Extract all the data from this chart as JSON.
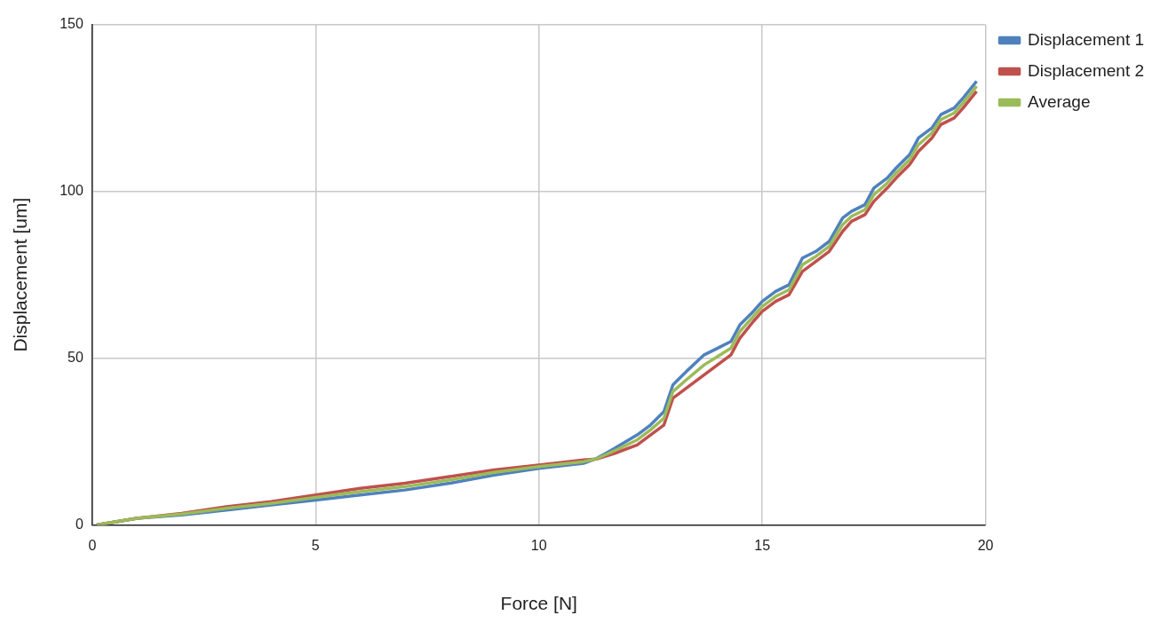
{
  "chart_data": {
    "type": "line",
    "xlabel": "Force [N]",
    "ylabel": "Displacement [um]",
    "x": [
      0.1,
      1,
      2,
      3,
      4,
      5,
      6,
      7,
      8,
      9,
      10,
      11,
      11.3,
      11.7,
      12.2,
      12.5,
      12.8,
      13.0,
      13.3,
      13.7,
      14.0,
      14.3,
      14.5,
      14.8,
      15.0,
      15.3,
      15.6,
      15.9,
      16.2,
      16.5,
      16.8,
      17.0,
      17.3,
      17.5,
      17.8,
      18.0,
      18.3,
      18.5,
      18.8,
      19.0,
      19.3,
      19.5,
      19.8
    ],
    "series": [
      {
        "name": "Displacement 1",
        "color": "#4f81bd",
        "values": [
          0,
          2,
          3,
          4.5,
          6,
          7.5,
          9,
          10.5,
          12.5,
          15,
          17,
          18.5,
          20,
          23,
          27,
          30,
          34,
          42,
          46,
          51,
          53,
          55,
          60,
          64,
          67,
          70,
          72,
          80,
          82,
          85,
          92,
          94,
          96,
          101,
          104,
          107,
          111,
          116,
          119,
          123,
          125,
          128,
          133
        ]
      },
      {
        "name": "Displacement 2",
        "color": "#c0504d",
        "values": [
          0,
          2,
          3.5,
          5.5,
          7,
          9,
          11,
          12.5,
          14.5,
          16.5,
          18,
          19.5,
          19.8,
          21.5,
          24,
          27,
          30,
          38,
          41,
          45,
          48,
          51,
          56,
          61,
          64,
          67,
          69,
          76,
          79,
          82,
          88,
          91,
          93,
          97,
          101,
          104,
          108,
          112,
          116,
          120,
          122,
          125,
          130
        ]
      },
      {
        "name": "Average",
        "color": "#9bbb59",
        "values": [
          0,
          2,
          3.3,
          5,
          6.5,
          8.3,
          10,
          11.5,
          13.5,
          15.8,
          17.5,
          19,
          19.9,
          22.3,
          25.5,
          28.5,
          32,
          40,
          43.5,
          48,
          50.5,
          53,
          58,
          62.5,
          65.5,
          68.5,
          70.5,
          78,
          80.5,
          83.5,
          90,
          92.5,
          94.5,
          99,
          102.5,
          105.5,
          109.5,
          114,
          117.5,
          121.5,
          123.5,
          126.5,
          131.5
        ]
      }
    ],
    "xlim": [
      0,
      20
    ],
    "xticks": [
      0,
      5,
      10,
      15,
      20
    ],
    "ylim": [
      0,
      150
    ],
    "yticks": [
      0,
      50,
      100,
      150
    ],
    "grid": true,
    "legend": "top right",
    "marker": "none",
    "line_style": "solid"
  }
}
